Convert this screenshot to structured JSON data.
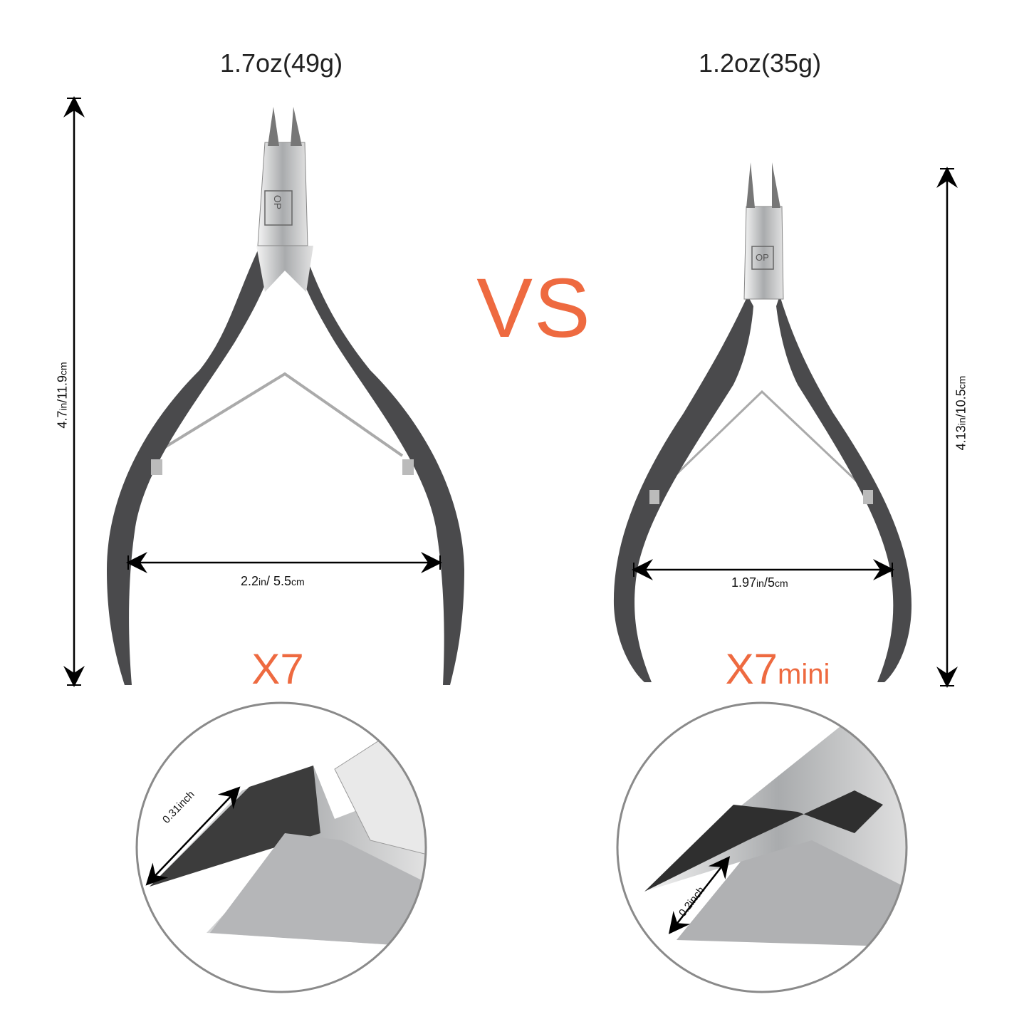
{
  "colors": {
    "accent": "#ee6a40",
    "handle": "#4a4a4c",
    "steel": "#c9cacc",
    "circle": "#8a8a8a"
  },
  "comparison_label": "VS",
  "left": {
    "weight": "1.7oz(49g)",
    "model": "X7",
    "height_value": "4.7",
    "height_unit1": "in",
    "height_sep": "/11.9",
    "height_unit2": "cm",
    "width_value": "2.2",
    "width_unit1": "in",
    "width_sep": "/ 5.5",
    "width_unit2": "cm",
    "tip_length": "0.31inch",
    "brand_mark": "OP"
  },
  "right": {
    "weight": "1.2oz(35g)",
    "model": "X7",
    "model_suffix": "mini",
    "height_value": "4.13",
    "height_unit1": "in",
    "height_sep": "/10.5",
    "height_unit2": "cm",
    "width_value": "1.97",
    "width_unit1": "in",
    "width_sep": "/5",
    "width_unit2": "cm",
    "tip_length": "0.2inch",
    "brand_mark": "OP"
  }
}
